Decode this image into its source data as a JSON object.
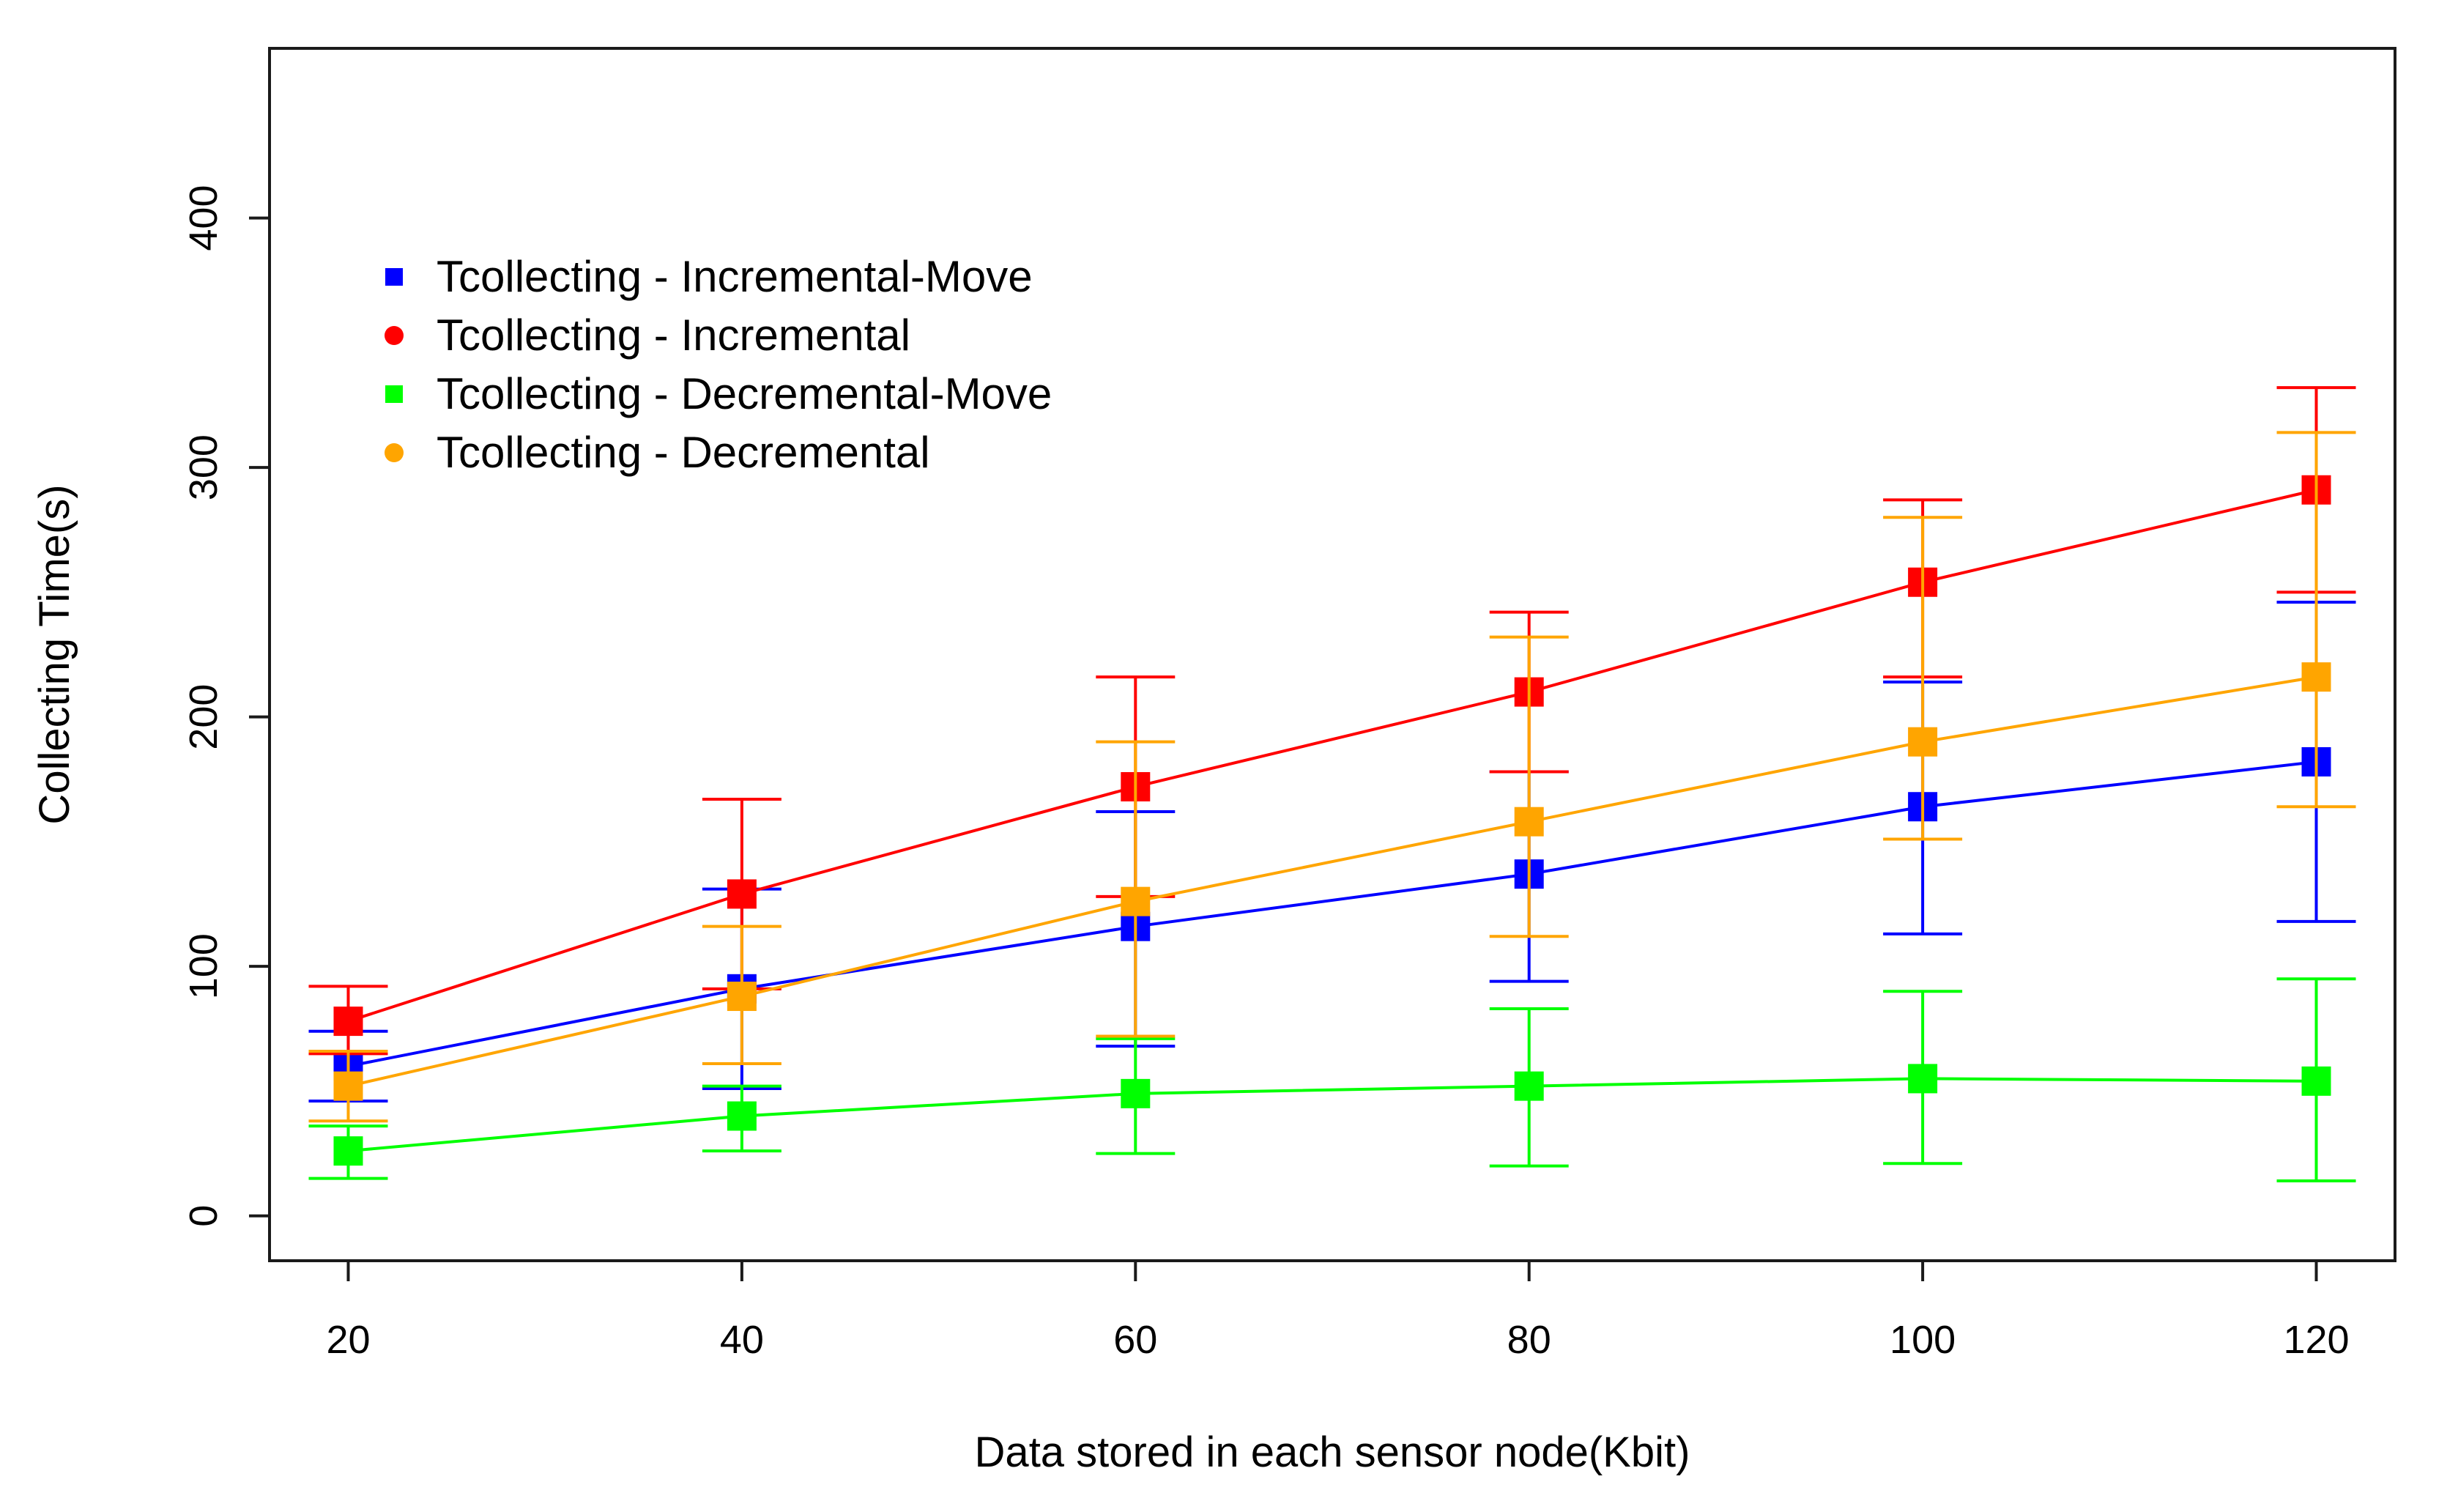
{
  "chart_data": {
    "type": "line",
    "title": "",
    "xlabel": "Data stored in each sensor node(Kbit)",
    "ylabel": "Collecting Time(s)",
    "x": [
      20,
      40,
      60,
      80,
      100,
      120
    ],
    "xlim": [
      16,
      124
    ],
    "ylim": [
      -18,
      468
    ],
    "xticks": [
      "20",
      "40",
      "60",
      "80",
      "100",
      "120"
    ],
    "yticks": [
      "0",
      "100",
      "200",
      "300",
      "400"
    ],
    "ytick_values": [
      0,
      100,
      200,
      300,
      400
    ],
    "grid": false,
    "legend_position": "top-left",
    "series": [
      {
        "name": "Tcollecting - Incremental-Move",
        "color": "#0000ff",
        "legend_marker": "square",
        "values": [
          60,
          91,
          116,
          137,
          164,
          182
        ],
        "err_low": [
          46,
          51,
          68,
          94,
          113,
          118
        ],
        "err_high": [
          74,
          131,
          162,
          178,
          214,
          246
        ]
      },
      {
        "name": "Tcollecting - Incremental",
        "color": "#ff0000",
        "legend_marker": "circle",
        "values": [
          78,
          129,
          172,
          210,
          254,
          291
        ],
        "err_low": [
          65,
          91,
          128,
          178,
          216,
          250
        ],
        "err_high": [
          92,
          167,
          216,
          242,
          287,
          332
        ]
      },
      {
        "name": "Tcollecting - Decremental-Move",
        "color": "#00ff00",
        "legend_marker": "square",
        "values": [
          26,
          40,
          49,
          52,
          55,
          54
        ],
        "err_low": [
          15,
          26,
          25,
          20,
          21,
          14
        ],
        "err_high": [
          36,
          52,
          71,
          83,
          90,
          95
        ]
      },
      {
        "name": "Tcollecting - Decremental",
        "color": "#ffa500",
        "legend_marker": "circle",
        "values": [
          52,
          88,
          126,
          158,
          190,
          216
        ],
        "err_low": [
          38,
          61,
          72,
          112,
          151,
          164
        ],
        "err_high": [
          66,
          116,
          190,
          232,
          280,
          314
        ]
      }
    ]
  }
}
